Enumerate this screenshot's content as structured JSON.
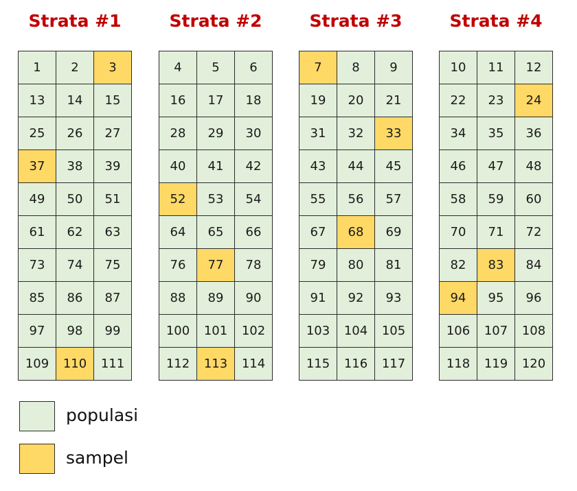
{
  "colors": {
    "populasi": "#e2efda",
    "sampel": "#ffd966",
    "title": "#c00000"
  },
  "strata": [
    {
      "title": "Strata #1",
      "rows": [
        [
          1,
          2,
          3
        ],
        [
          13,
          14,
          15
        ],
        [
          25,
          26,
          27
        ],
        [
          37,
          38,
          39
        ],
        [
          49,
          50,
          51
        ],
        [
          61,
          62,
          63
        ],
        [
          73,
          74,
          75
        ],
        [
          85,
          86,
          87
        ],
        [
          97,
          98,
          99
        ],
        [
          109,
          110,
          111
        ]
      ],
      "samples": [
        3,
        37,
        110
      ]
    },
    {
      "title": "Strata #2",
      "rows": [
        [
          4,
          5,
          6
        ],
        [
          16,
          17,
          18
        ],
        [
          28,
          29,
          30
        ],
        [
          40,
          41,
          42
        ],
        [
          52,
          53,
          54
        ],
        [
          64,
          65,
          66
        ],
        [
          76,
          77,
          78
        ],
        [
          88,
          89,
          90
        ],
        [
          100,
          101,
          102
        ],
        [
          112,
          113,
          114
        ]
      ],
      "samples": [
        52,
        77,
        113
      ]
    },
    {
      "title": "Strata #3",
      "rows": [
        [
          7,
          8,
          9
        ],
        [
          19,
          20,
          21
        ],
        [
          31,
          32,
          33
        ],
        [
          43,
          44,
          45
        ],
        [
          55,
          56,
          57
        ],
        [
          67,
          68,
          69
        ],
        [
          79,
          80,
          81
        ],
        [
          91,
          92,
          93
        ],
        [
          103,
          104,
          105
        ],
        [
          115,
          116,
          117
        ]
      ],
      "samples": [
        7,
        33,
        68
      ]
    },
    {
      "title": "Strata #4",
      "rows": [
        [
          10,
          11,
          12
        ],
        [
          22,
          23,
          24
        ],
        [
          34,
          35,
          36
        ],
        [
          46,
          47,
          48
        ],
        [
          58,
          59,
          60
        ],
        [
          70,
          71,
          72
        ],
        [
          82,
          83,
          84
        ],
        [
          94,
          95,
          96
        ],
        [
          106,
          107,
          108
        ],
        [
          118,
          119,
          120
        ]
      ],
      "samples": [
        24,
        83,
        94
      ]
    }
  ],
  "legend": [
    {
      "key": "populasi",
      "label": "populasi"
    },
    {
      "key": "sampel",
      "label": "sampel"
    }
  ]
}
